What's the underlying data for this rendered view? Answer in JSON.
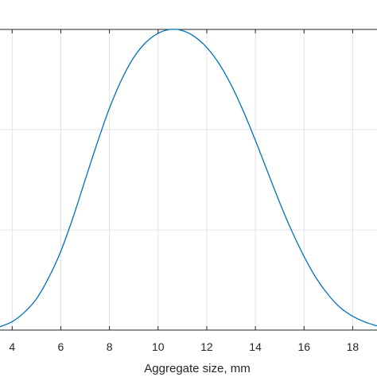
{
  "chart_data": {
    "type": "line",
    "title": "",
    "xlabel": "Aggregate size, mm",
    "ylabel": "",
    "xlim": [
      3.5,
      19
    ],
    "ylim": [
      0,
      1
    ],
    "x_ticks": [
      4,
      6,
      8,
      10,
      12,
      14,
      16,
      18
    ],
    "x_tick_labels": [
      "4",
      "6",
      "8",
      "10",
      "12",
      "14",
      "16",
      "18"
    ],
    "y_gridlines": [
      0.333,
      0.667
    ],
    "grid": true,
    "legend": "none",
    "series": [
      {
        "color": "#0072bd",
        "x": [
          3.5,
          4.0,
          4.5,
          5.0,
          5.5,
          6.0,
          6.5,
          7.0,
          7.5,
          8.0,
          8.5,
          9.0,
          9.5,
          10.0,
          10.5,
          11.0,
          11.5,
          12.0,
          12.5,
          13.0,
          13.5,
          14.0,
          14.5,
          15.0,
          15.5,
          16.0,
          16.5,
          17.0,
          17.5,
          18.0,
          18.5,
          19.0
        ],
        "y": [
          0.011,
          0.028,
          0.059,
          0.104,
          0.174,
          0.262,
          0.374,
          0.499,
          0.623,
          0.738,
          0.833,
          0.907,
          0.957,
          0.987,
          1.0,
          0.996,
          0.976,
          0.94,
          0.887,
          0.816,
          0.729,
          0.631,
          0.527,
          0.424,
          0.329,
          0.245,
          0.173,
          0.117,
          0.074,
          0.046,
          0.027,
          0.014
        ]
      }
    ]
  }
}
